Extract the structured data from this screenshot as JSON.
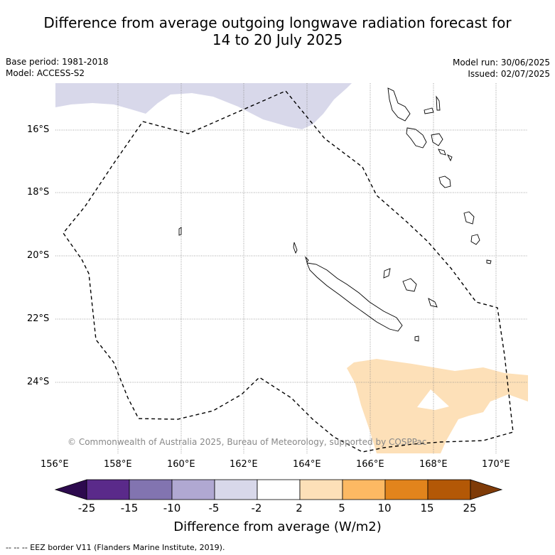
{
  "title_line1": "Difference from average outgoing longwave radiation forecast for",
  "title_line2": "14 to 20 July 2025",
  "base_period": "Base period: 1981-2018",
  "model": "Model: ACCESS-S2",
  "model_run": "Model run: 30/06/2025",
  "issued": "Issued: 02/07/2025",
  "lat_labels": [
    "16°S",
    "18°S",
    "20°S",
    "22°S",
    "24°S"
  ],
  "lon_labels": [
    "156°E",
    "158°E",
    "160°E",
    "162°E",
    "164°E",
    "166°E",
    "168°E",
    "170°E"
  ],
  "copyright": "© Commonwealth of Australia 2025, Bureau of Meteorology, supported by COSPPac",
  "colorbar": {
    "ticks": [
      "-25",
      "-15",
      "-10",
      "-5",
      "-2",
      "2",
      "5",
      "10",
      "15",
      "25"
    ],
    "colors": [
      "#2d0a4e",
      "#5a2a8a",
      "#8274b0",
      "#b0a8d2",
      "#d8d8ea",
      "#ffffff",
      "#fde0b8",
      "#fdb963",
      "#e2841c",
      "#b35806",
      "#7f3b08"
    ],
    "title": "Difference from average (W/m2)"
  },
  "legend_eez": "--  --  -- EEZ border V11 (Flanders Marine Institute, 2019)."
}
